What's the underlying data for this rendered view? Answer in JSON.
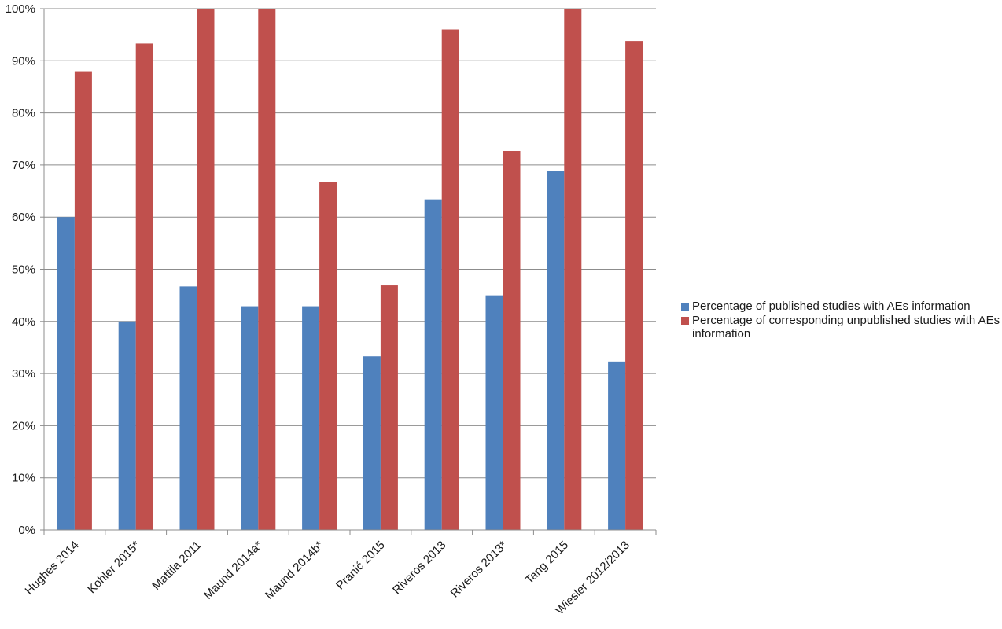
{
  "chart_data": {
    "type": "bar",
    "categories": [
      "Hughes 2014",
      "Kohler 2015*",
      "Mattila 2011",
      "Maund 2014a*",
      "Maund 2014b*",
      "Pranić  2015",
      "Riveros 2013",
      "Riveros 2013*",
      "Tang 2015",
      "Wiesler 2012/2013"
    ],
    "series": [
      {
        "name": "Percentage of published studies with AEs information",
        "color": "#4f81bd",
        "values": [
          60,
          40,
          46.7,
          42.9,
          42.9,
          33.3,
          63.4,
          45.0,
          68.8,
          32.3
        ]
      },
      {
        "name": "Percentage of corresponding unpublished studies with AEs information",
        "color": "#c0504d",
        "values": [
          88,
          93.3,
          100,
          100,
          66.7,
          46.9,
          96,
          72.7,
          100,
          93.8
        ]
      }
    ],
    "ylim": [
      0,
      100
    ],
    "yticks": [
      "0%",
      "10%",
      "20%",
      "30%",
      "40%",
      "50%",
      "60%",
      "70%",
      "80%",
      "90%",
      "100%"
    ],
    "grid": true,
    "legend_position": "right"
  }
}
